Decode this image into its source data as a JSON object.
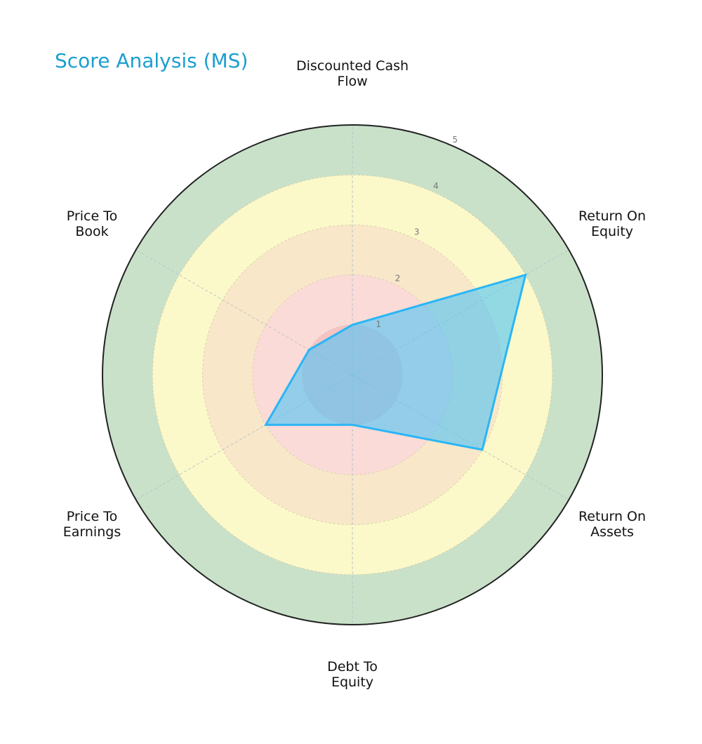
{
  "title": "Score Analysis (MS)",
  "colors": {
    "title": "#1a9fcf",
    "zone_0_1": "#f6c3c3",
    "zone_1_2": "#fadbd8",
    "zone_2_3": "#f8e7c9",
    "zone_3_4": "#fbf9c9",
    "zone_4_5": "#c9e1c9",
    "polygon_fill": "#4fc3f7",
    "polygon_stroke": "#29b6f6",
    "outer_ring": "#222222"
  },
  "chart_data": {
    "type": "radar",
    "title": "Score Analysis (MS)",
    "categories": [
      "Discounted Cash Flow",
      "Return On Equity",
      "Return On Assets",
      "Debt To Equity",
      "Price To Earnings",
      "Price To Book"
    ],
    "series": [
      {
        "name": "MS",
        "values": [
          1,
          4,
          3,
          1,
          2,
          1
        ]
      }
    ],
    "rlim": [
      0,
      5
    ],
    "rticks": [
      1,
      2,
      3,
      4,
      5
    ],
    "zones": [
      {
        "from": 0,
        "to": 1,
        "color": "#f6c3c3"
      },
      {
        "from": 1,
        "to": 2,
        "color": "#fadbd8"
      },
      {
        "from": 2,
        "to": 3,
        "color": "#f8e7c9"
      },
      {
        "from": 3,
        "to": 4,
        "color": "#fbf9c9"
      },
      {
        "from": 4,
        "to": 5,
        "color": "#c9e1c9"
      }
    ],
    "grid": true,
    "legend": false
  },
  "labels": {
    "dcf": "Discounted Cash\nFlow",
    "roe": "Return On\nEquity",
    "roa": "Return On\nAssets",
    "de": "Debt To\nEquity",
    "pe": "Price To\nEarnings",
    "pb": "Price To\nBook"
  },
  "ticks": [
    "1",
    "2",
    "3",
    "4",
    "5"
  ]
}
